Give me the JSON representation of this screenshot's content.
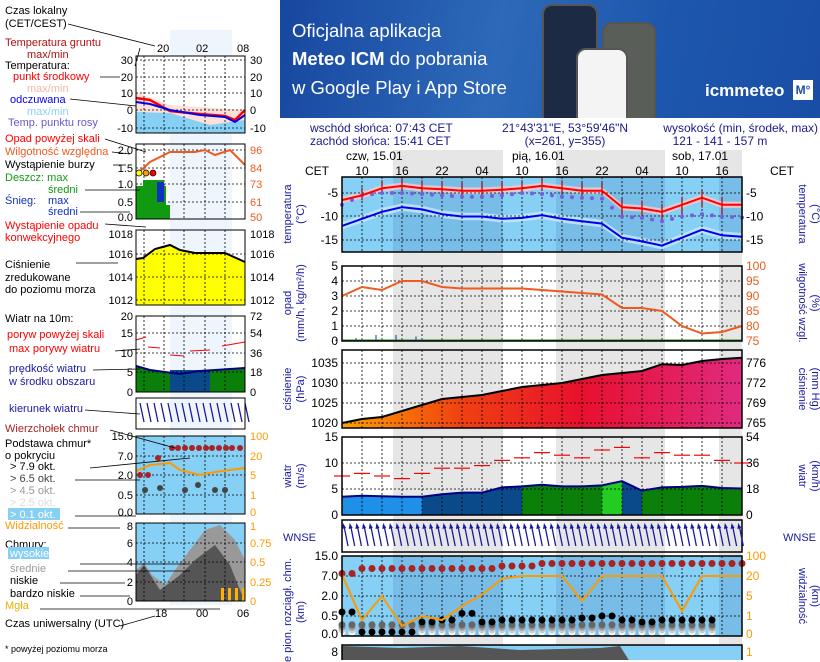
{
  "banner": {
    "line1": "Oficjalna aplikacja",
    "line2_bold": "Meteo ICM",
    "line2_rest": " do pobrania",
    "line3": "w Google Play i App Store",
    "logo_text": "icmmeteo",
    "logo_badge": "M°"
  },
  "header": {
    "sunrise": "wschód słońca: 07:43 CET",
    "sunset": "zachód słońca: 15:41 CET",
    "coords": "21°43'31\"E, 53°59'46\"N",
    "grid": "(x=261,  y=355)",
    "elevation_label": "wysokość (min, środek, max)",
    "elevation_values": "121 - 141 - 157 m"
  },
  "time_axis": {
    "tz_left": "CET",
    "tz_right": "CET",
    "days": [
      "czw, 15.01",
      "pią, 16.01",
      "sob, 17.01"
    ],
    "hour_labels": [
      "10",
      "16",
      "22",
      "04",
      "10",
      "16",
      "22",
      "04",
      "10",
      "16"
    ]
  },
  "axis_titles": {
    "temp_left": "temperatura\n(°C)",
    "temp_right": "(°C)\ntemperatura",
    "precip_left": "opad\n(mm/h, kg/m²/h)",
    "humidity_right": "(%)\nwilgotność wzgl.",
    "pressure_left": "ciśnienie\n(hPa)",
    "pressure_right": "(mm Hg)\nciśnienie",
    "wind_left": "wiatr\n(m/s)",
    "wind_right": "(km/h)\nwiatr",
    "cloud_left": "e  pion. rozciągł. chm.\n(km)",
    "vis_right": "(km)\nwidzialność",
    "compass": "WNSE"
  },
  "chart_data": [
    {
      "type": "line",
      "title": "",
      "x": [
        "15.01 07",
        "15.01 10",
        "15.01 13",
        "15.01 16",
        "15.01 19",
        "15.01 22",
        "16.01 01",
        "16.01 04",
        "16.01 07",
        "16.01 10",
        "16.01 13",
        "16.01 16",
        "16.01 19",
        "16.01 22",
        "17.01 01",
        "17.01 04",
        "17.01 07",
        "17.01 10",
        "17.01 13",
        "17.01 16",
        "17.01 19"
      ],
      "ylabel": "temperatura (°C)",
      "yticks": [
        -5,
        -10,
        -15
      ],
      "ylim": [
        -17.5,
        -1.6
      ],
      "series": [
        {
          "name": "Temperatura: punkt środkowy",
          "color": "#ff0000",
          "values": [
            -6.5,
            -5.5,
            -4,
            -3.5,
            -4,
            -4.2,
            -4.5,
            -4.5,
            -4.3,
            -4,
            -3.5,
            -4,
            -4.5,
            -4.5,
            -8,
            -8.3,
            -9,
            -7.5,
            -6,
            -7.5,
            -7.5
          ]
        },
        {
          "name": "odczuwana",
          "color": "#0000ee",
          "values": [
            -12,
            -10.5,
            -9,
            -8,
            -8.5,
            -9.5,
            -10,
            -10,
            -10.5,
            -10.3,
            -9.7,
            -10.5,
            -11,
            -11.5,
            -14.5,
            -15.3,
            -16.2,
            -14.5,
            -12.8,
            -14,
            -14.3
          ]
        },
        {
          "name": "Temp. punktu rosy",
          "color": "#7b5ce0",
          "values": [
            -7.5,
            -5.5,
            -5,
            -5,
            -5.2,
            -5.5,
            -5.8,
            -5.8,
            -5.5,
            -5,
            -5.2,
            -5.8,
            -6,
            -6.2,
            -10,
            -10.3,
            -11,
            -10,
            -9.5,
            -10,
            -10.2
          ]
        }
      ]
    },
    {
      "type": "line",
      "ylabel": "opad (mm/h, kg/m²/h)",
      "yticks": [
        0,
        1,
        2,
        3,
        4,
        5
      ],
      "ylim": [
        0,
        5
      ],
      "y2ticks": [
        75,
        80,
        85,
        90,
        95,
        100
      ],
      "y2lim": [
        75,
        100
      ],
      "series": [
        {
          "name": "Wilgotność względna",
          "color": "#f05a1e",
          "axis": "right",
          "values": [
            90,
            93,
            92,
            95,
            95,
            93,
            92.5,
            92.5,
            92.5,
            92.5,
            92,
            91.5,
            91,
            90.5,
            86,
            86,
            85,
            80,
            77.5,
            78,
            80
          ]
        },
        {
          "name": "Śnieg: średni",
          "color": "#1030c0",
          "type": "bar",
          "values": [
            0.1,
            0.2,
            0.4,
            0.4,
            0.3,
            0,
            0,
            0,
            0,
            0,
            0,
            0,
            0,
            0.05,
            0,
            0,
            0,
            0,
            0,
            0,
            0
          ]
        }
      ]
    },
    {
      "type": "area",
      "ylabel": "ciśnienie (hPa)",
      "yticks": [
        1020,
        1025,
        1030,
        1035
      ],
      "ylim": [
        1018.75,
        1038.25
      ],
      "y2ticks": [
        765,
        769,
        772,
        776
      ],
      "series": [
        {
          "name": "Ciśnienie zredukowane do poziomu morza",
          "color": "#000000",
          "values": [
            1020,
            1021,
            1021.5,
            1023,
            1024.5,
            1026,
            1026.5,
            1027,
            1028,
            1029,
            1029.5,
            1030,
            1031,
            1032,
            1032.5,
            1033,
            1034.7,
            1034.5,
            1035.5,
            1036,
            1036.3
          ]
        }
      ]
    },
    {
      "type": "line",
      "ylabel": "wiatr (m/s)",
      "yticks": [
        0,
        5,
        10,
        15
      ],
      "ylim": [
        0,
        15
      ],
      "y2ticks": [
        0,
        18,
        36,
        54
      ],
      "series": [
        {
          "name": "prędkość wiatru w środku obszaru",
          "color": "#000080",
          "values": [
            3.5,
            3.7,
            3.6,
            3.5,
            3.5,
            4,
            4.3,
            4.3,
            5.3,
            5.5,
            5.8,
            5.5,
            5.5,
            5.7,
            6.5,
            4.7,
            5.3,
            5.4,
            5.6,
            5.2,
            5.1
          ]
        },
        {
          "name": "max porywy wiatru",
          "color": "#ff0000",
          "values": [
            7.5,
            8,
            7.5,
            7,
            8,
            9,
            9,
            9.5,
            10.5,
            11,
            12,
            11.5,
            11,
            12.5,
            13,
            11,
            12,
            11.5,
            11.5,
            10.5,
            10
          ]
        }
      ]
    },
    {
      "type": "scatter",
      "ylabel": "pion. rozciągł. chm. (km)",
      "yticks": [
        0.0,
        0.5,
        2.0,
        7.0,
        15.0
      ],
      "y2ticks": [
        0,
        1,
        5,
        20,
        100
      ],
      "series": [
        {
          "name": "Widzialność",
          "color": "#ff9900",
          "axis": "right",
          "values": [
            25,
            0.8,
            5,
            0.5,
            1,
            0.8,
            3,
            6,
            18,
            20,
            20,
            20,
            4,
            20,
            20,
            20,
            20,
            2,
            20,
            20,
            20
          ]
        },
        {
          "name": "Wierzchołek chmur",
          "color": "#aa2222",
          "values": [
            8,
            10,
            10,
            10,
            10,
            10,
            10,
            10,
            11,
            11,
            12,
            12,
            12,
            12,
            12,
            12,
            12,
            12,
            12,
            12,
            12
          ]
        },
        {
          "name": "Podstawa chmur > 7.9 okt.",
          "color": "#000000",
          "values": [
            0.8,
            0.1,
            0.1,
            0.1,
            0.35,
            0.4,
            0.7,
            0.35,
            0.4,
            0.4,
            0.4,
            0.4,
            0.45,
            0.5,
            0.4,
            0.35,
            0.4,
            0.4,
            0.4,
            null,
            null
          ]
        }
      ]
    }
  ],
  "right_ticks": {
    "temp": [
      "-5",
      "-10",
      "-15"
    ],
    "cloud_left": [
      "15.0",
      "7.0",
      "2.0",
      "0.5",
      "0.0"
    ],
    "vis": [
      "100",
      "20",
      "5",
      "1",
      "0"
    ],
    "cloud8": "8",
    "cloud8_right": "1"
  },
  "legend": {
    "local_time": "Czas lokalny",
    "local_time2": "(CET/CEST)",
    "hours_top": [
      "20",
      "02",
      "08"
    ],
    "ground_temp": "Temperatura gruntu",
    "ground_temp2": "max/min",
    "temperature": "Temperatura:",
    "midpoint": "punkt środkowy",
    "midpoint_mm": "max/min",
    "feels": "odczuwana",
    "feels_mm": "max/min",
    "dewpoint": "Temp. punktu rosy",
    "precip_over": "Opad powyżej skali",
    "humidity": "Wilgotność względna",
    "storm": "Wystąpienie burzy",
    "rain_max": "Deszcz: max",
    "rain_avg": "średni",
    "snow": "Śnieg:",
    "snow_max": "max",
    "snow_avg": "średni",
    "convective": "Wystąpienie opadu",
    "convective2": "konwekcyjnego",
    "pressure1": "Ciśnienie",
    "pressure2": "zredukowane",
    "pressure3": "do poziomu morza",
    "wind10": "Wiatr na 10m:",
    "gust_over": "poryw powyżej skali",
    "gust_max": "max porywy wiatru",
    "wind_speed": "prędkość wiatru",
    "wind_speed2": "w środku obszaru",
    "wind_dir": "kierunek wiatru",
    "cloud_top": "Wierzchołek chmur",
    "cloud_base": "Podstawa chmur*",
    "cloud_base2": "o pokryciu",
    "okt": [
      "> 7.9 okt.",
      "> 6.5 okt.",
      "> 4.5 okt.",
      "> 2.5 okt.",
      "> 0.1 okt."
    ],
    "visibility": "Widzialność",
    "clouds": "Chmury:",
    "high": "wysokie",
    "mid": "średnie",
    "low": "niskie",
    "very_low": "bardzo niskie",
    "fog": "Mgła",
    "hours_bottom": [
      "18",
      "00",
      "06"
    ],
    "utc": "Czas uniwersalny (UTC)",
    "footnote": "* powyżej poziomu morza",
    "ticks": {
      "temp": [
        "30",
        "20",
        "10",
        "0",
        "-10"
      ],
      "precip": [
        "2.0",
        "1.5",
        "1.0",
        "0.5",
        "0.0"
      ],
      "humid": [
        "96",
        "84",
        "73",
        "61",
        "50"
      ],
      "press": [
        "1018",
        "1016",
        "1014",
        "1012"
      ],
      "wind": [
        "20",
        "15",
        "10",
        "5",
        "0"
      ],
      "wind_r": [
        "72",
        "54",
        "36",
        "18",
        "0"
      ],
      "cb": [
        "15.0",
        "7.0",
        "2.0",
        "0.5",
        "0.0"
      ],
      "cb_r": [
        "100",
        "20",
        "5",
        "1",
        "0"
      ],
      "cl": [
        "8",
        "6",
        "4",
        "2",
        "0"
      ],
      "cl_r": [
        "1",
        "0.75",
        "0.5",
        "0.25",
        "0"
      ]
    }
  },
  "colors": {
    "navy": "#1a1a8c",
    "temp": "#ff0000",
    "feels": "#0000ee",
    "dew": "#7b5ce0",
    "humidity": "#f05a1e",
    "gust": "#ff0000",
    "wind_fill_green": "#0a7f0a",
    "wind_fill_blue": "#0b4a8a",
    "sky": "#86cff5",
    "vis": "#ff9900"
  }
}
